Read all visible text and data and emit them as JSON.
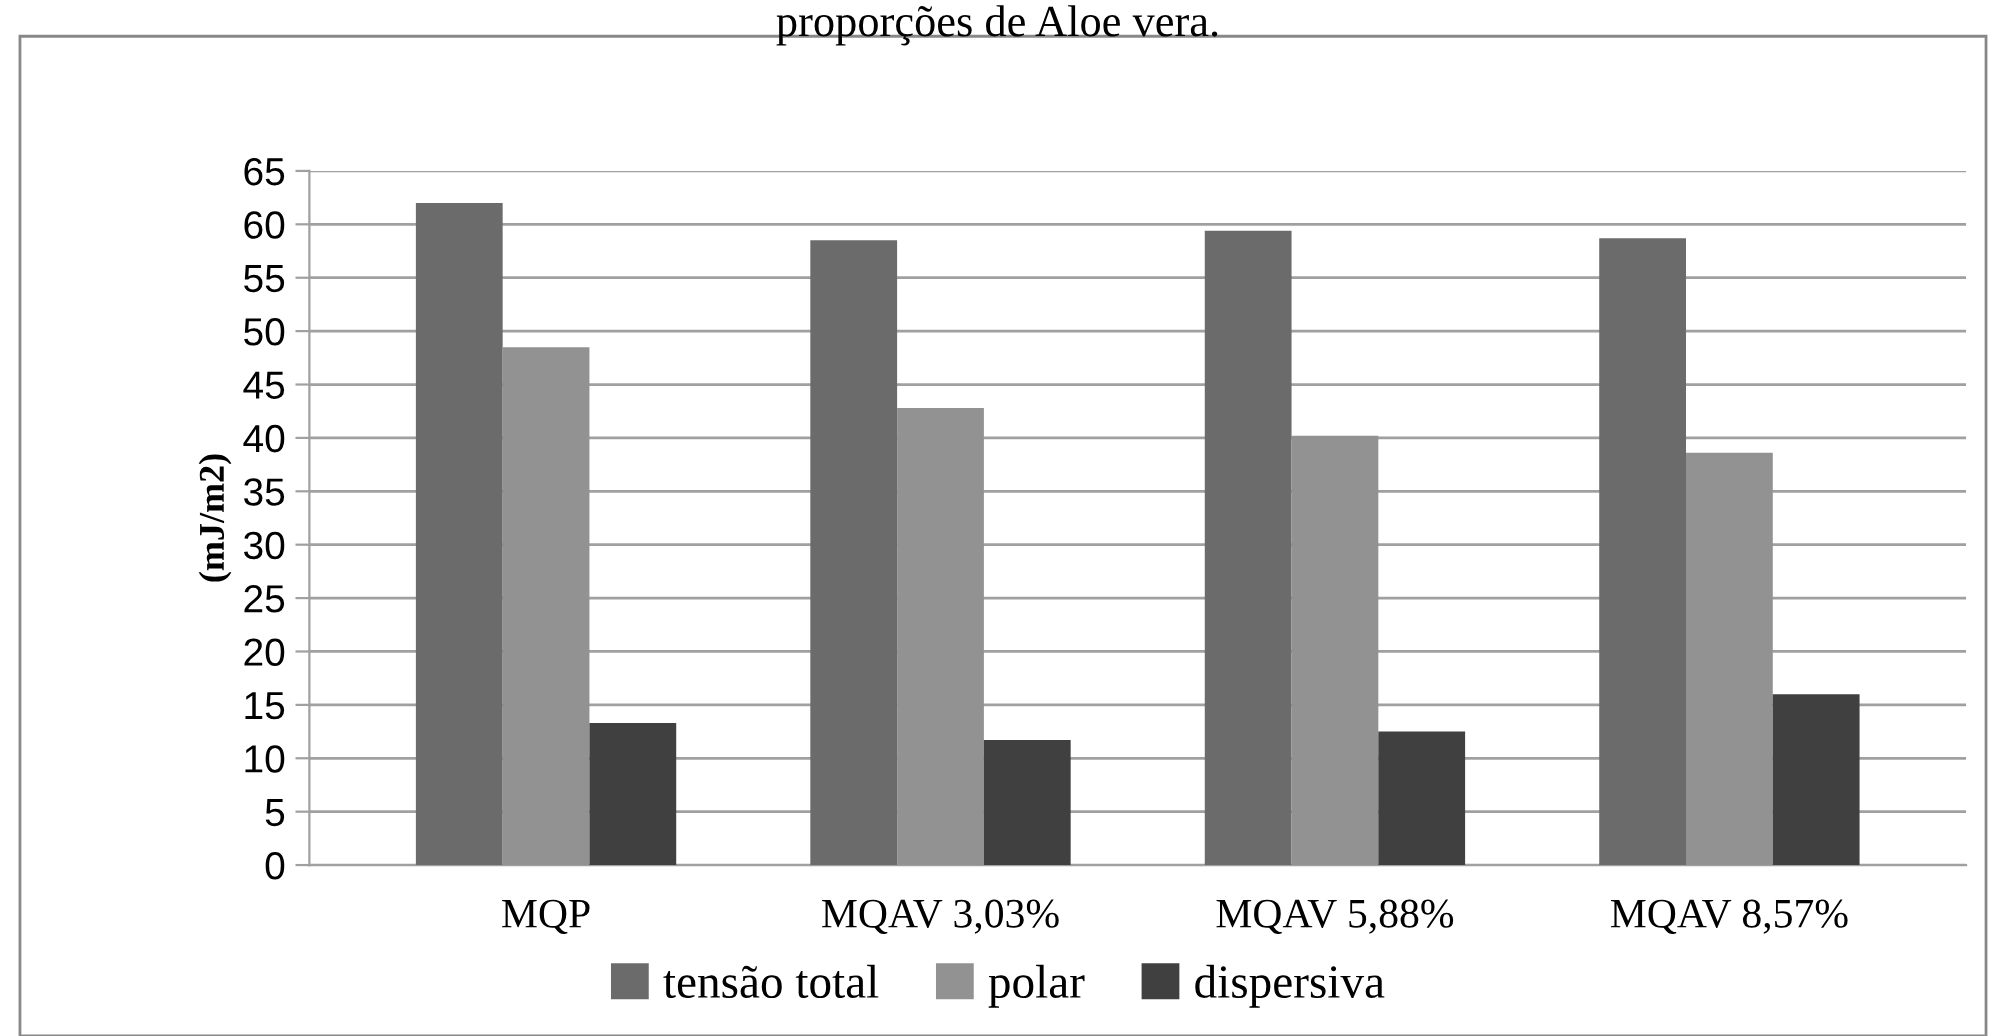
{
  "chart_data": {
    "type": "bar",
    "title": "proporções de Aloe vera.",
    "ylabel": "(mJ/m2)",
    "categories": [
      "MQP",
      "MQAV 3,03%",
      "MQAV 5,88%",
      "MQAV 8,57%"
    ],
    "series": [
      {
        "name": "tensão total",
        "color": "#6b6b6b",
        "values": [
          62.0,
          58.5,
          59.4,
          58.7
        ]
      },
      {
        "name": "polar",
        "color": "#929292",
        "values": [
          48.5,
          42.8,
          40.2,
          38.6
        ]
      },
      {
        "name": "dispersiva",
        "color": "#404040",
        "values": [
          13.3,
          11.7,
          12.5,
          16.0
        ]
      }
    ],
    "ylim": [
      0,
      65
    ],
    "yticks": [
      0,
      5,
      10,
      15,
      20,
      25,
      30,
      35,
      40,
      45,
      50,
      55,
      60,
      65
    ],
    "grid": "y",
    "legend": "bottom"
  }
}
